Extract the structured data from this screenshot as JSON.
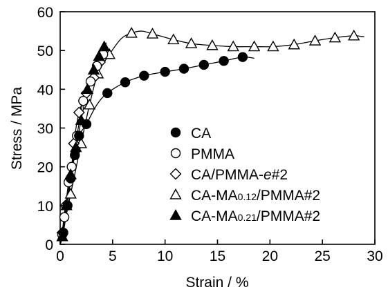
{
  "chart_data": {
    "type": "scatter",
    "xlabel": "Strain / %",
    "ylabel": "Stress / MPa",
    "xlim": [
      0,
      30
    ],
    "ylim": [
      0,
      60
    ],
    "xticks": [
      "0",
      "5",
      "10",
      "15",
      "20",
      "25",
      "30"
    ],
    "yticks": [
      "0",
      "10",
      "20",
      "30",
      "40",
      "50",
      "60"
    ],
    "grid": false,
    "legend_position": "bottom-right",
    "series": [
      {
        "name": "CA",
        "marker": "filled-circle",
        "x": [
          0.3,
          0.7,
          1.0,
          1.4,
          1.8,
          2.5,
          4.5,
          6.2,
          8.0,
          10.0,
          11.8,
          13.7,
          15.6,
          17.4
        ],
        "y": [
          3,
          10,
          17,
          23,
          28,
          31,
          39,
          41.8,
          43.5,
          44.5,
          45.3,
          46.3,
          47.3,
          48.3
        ],
        "curve": [
          [
            0,
            0
          ],
          [
            0.3,
            3
          ],
          [
            0.7,
            10
          ],
          [
            1.0,
            17
          ],
          [
            1.4,
            23
          ],
          [
            1.8,
            28
          ],
          [
            2.5,
            31
          ],
          [
            3.5,
            36
          ],
          [
            4.5,
            39
          ],
          [
            6.2,
            41.8
          ],
          [
            8.0,
            43.5
          ],
          [
            10.0,
            44.5
          ],
          [
            11.8,
            45.3
          ],
          [
            13.7,
            46.3
          ],
          [
            15.6,
            47.3
          ],
          [
            17.4,
            48.3
          ],
          [
            18.5,
            48.0
          ]
        ]
      },
      {
        "name": "PMMA",
        "marker": "open-circle",
        "x": [
          0.2,
          0.4,
          0.8,
          1.1,
          1.6,
          2.2,
          2.9,
          3.5,
          4.1
        ],
        "y": [
          2.5,
          7,
          16,
          20,
          28,
          37,
          42,
          46,
          49
        ],
        "curve": [
          [
            0,
            0
          ],
          [
            0.2,
            2.5
          ],
          [
            0.4,
            7
          ],
          [
            0.8,
            16
          ],
          [
            1.1,
            20
          ],
          [
            1.6,
            28
          ],
          [
            2.2,
            37
          ],
          [
            2.9,
            42
          ],
          [
            3.5,
            46
          ],
          [
            4.1,
            49
          ],
          [
            4.5,
            50
          ]
        ]
      },
      {
        "name": "CA/PMMA-e#2",
        "marker": "open-diamond",
        "x": [
          0.2,
          0.5,
          1.0,
          1.3,
          1.8,
          2.5,
          3.2,
          3.8
        ],
        "y": [
          3,
          10,
          17,
          26,
          34,
          39,
          43,
          47
        ],
        "curve": [
          [
            0,
            0
          ],
          [
            0.2,
            3
          ],
          [
            0.5,
            10
          ],
          [
            1.0,
            17
          ],
          [
            1.3,
            26
          ],
          [
            1.8,
            34
          ],
          [
            2.5,
            39
          ],
          [
            3.2,
            43
          ],
          [
            3.8,
            47
          ],
          [
            4.2,
            48
          ]
        ]
      },
      {
        "name": "CA-MA0.12/PMMA#2",
        "marker": "open-triangle",
        "x": [
          1.0,
          2.0,
          2.8,
          3.6,
          4.7,
          6.8,
          8.8,
          10.8,
          12.5,
          14.5,
          16.5,
          18.5,
          20.3,
          22.3,
          24.3,
          26.2,
          28.0
        ],
        "y": [
          13,
          26,
          36,
          44,
          49,
          54.5,
          54.3,
          52.8,
          51.8,
          51.3,
          51.0,
          51.0,
          51.0,
          51.5,
          52.5,
          53.3,
          53.8
        ],
        "curve": [
          [
            0,
            0
          ],
          [
            1.0,
            13
          ],
          [
            2.0,
            26
          ],
          [
            2.8,
            36
          ],
          [
            3.6,
            44
          ],
          [
            4.7,
            49
          ],
          [
            5.8,
            53
          ],
          [
            6.8,
            54.5
          ],
          [
            7.8,
            55
          ],
          [
            8.8,
            54.3
          ],
          [
            10.8,
            52.8
          ],
          [
            12.5,
            51.8
          ],
          [
            14.5,
            51.3
          ],
          [
            16.5,
            51.0
          ],
          [
            18.5,
            51.0
          ],
          [
            20.3,
            51.0
          ],
          [
            22.3,
            51.5
          ],
          [
            24.3,
            52.5
          ],
          [
            26.2,
            53.3
          ],
          [
            28.0,
            53.8
          ],
          [
            29.0,
            53.5
          ]
        ]
      },
      {
        "name": "CA-MA0.21/PMMA#2",
        "marker": "filled-triangle",
        "x": [
          0.2,
          0.6,
          1.0,
          1.5,
          2.0,
          2.6,
          3.2,
          3.7,
          4.2
        ],
        "y": [
          2,
          10,
          18,
          25,
          32,
          40,
          45,
          48.5,
          51
        ],
        "curve": [
          [
            0,
            0
          ],
          [
            0.2,
            2
          ],
          [
            0.6,
            10
          ],
          [
            1.0,
            18
          ],
          [
            1.5,
            25
          ],
          [
            2.0,
            32
          ],
          [
            2.6,
            40
          ],
          [
            3.2,
            45
          ],
          [
            3.7,
            48.5
          ],
          [
            4.2,
            51
          ],
          [
            4.4,
            52
          ]
        ]
      }
    ],
    "legend": [
      {
        "marker": "filled-circle",
        "main": "CA",
        "sub": "",
        "tail": ""
      },
      {
        "marker": "open-circle",
        "main": "PMMA",
        "sub": "",
        "tail": ""
      },
      {
        "marker": "open-diamond",
        "main": "CA/PMMA-",
        "italic": "e",
        "sub": "",
        "tail": "#2"
      },
      {
        "marker": "open-triangle",
        "main": "CA-MA",
        "sub": "0.12",
        "tail": "/PMMA#2"
      },
      {
        "marker": "filled-triangle",
        "main": "CA-MA",
        "sub": "0.21",
        "tail": "/PMMA#2"
      }
    ]
  }
}
